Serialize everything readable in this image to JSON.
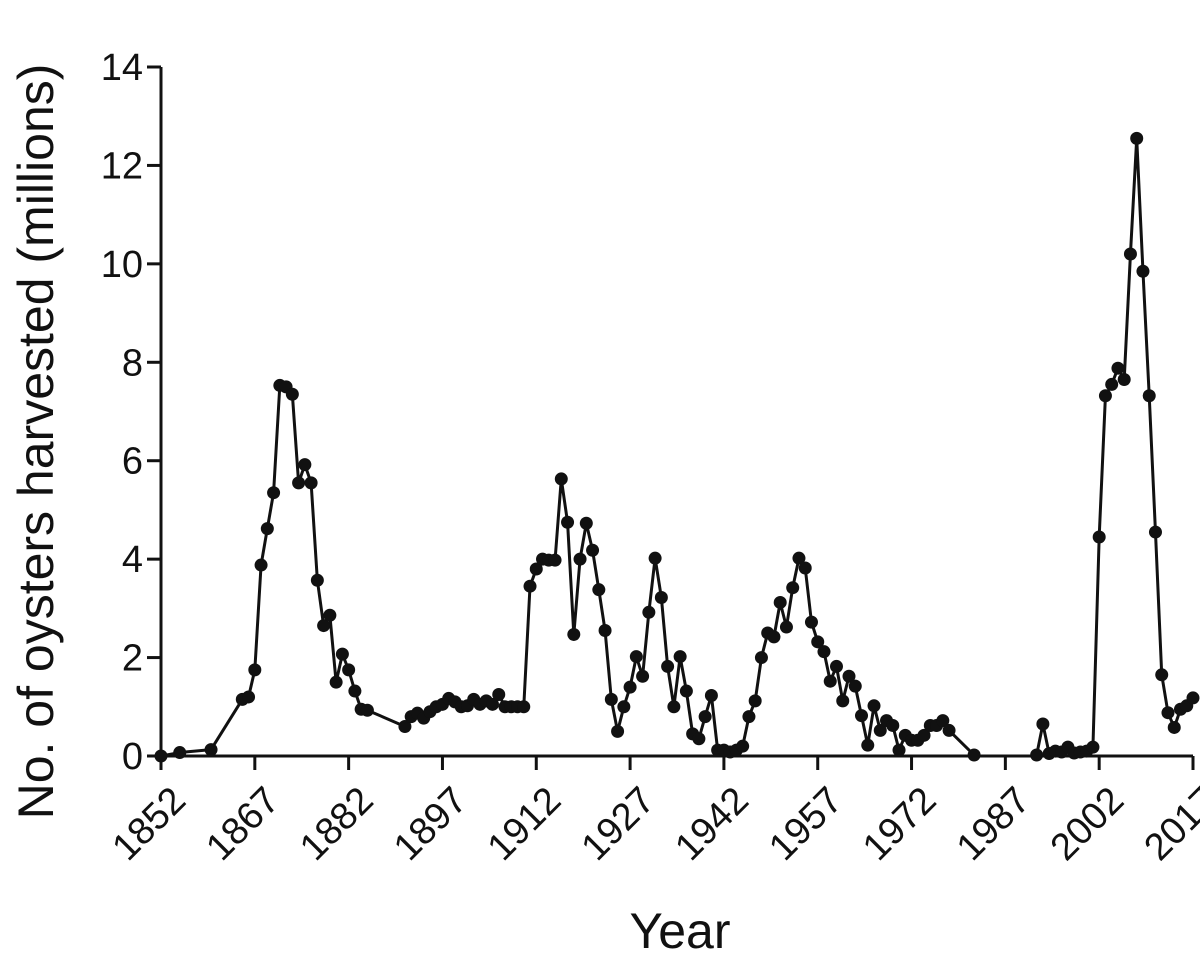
{
  "chart_data": {
    "type": "line",
    "xlabel": "Year",
    "ylabel": "No. of oysters harvested (millions)",
    "xlim": [
      1852,
      2017
    ],
    "ylim": [
      0,
      14
    ],
    "x_ticks": [
      1852,
      1867,
      1882,
      1897,
      1912,
      1927,
      1942,
      1957,
      1972,
      1987,
      2002,
      2017
    ],
    "y_ticks": [
      0,
      2,
      4,
      6,
      8,
      10,
      12,
      14
    ],
    "grid": false,
    "series": [
      {
        "color": "#111111",
        "segments": [
          [
            [
              1852,
              0.0
            ],
            [
              1855,
              0.07
            ],
            [
              1860,
              0.13
            ],
            [
              1865,
              1.15
            ],
            [
              1866,
              1.2
            ],
            [
              1867,
              1.75
            ],
            [
              1868,
              3.88
            ],
            [
              1869,
              4.62
            ],
            [
              1870,
              5.35
            ],
            [
              1871,
              7.53
            ],
            [
              1872,
              7.5
            ],
            [
              1873,
              7.35
            ],
            [
              1874,
              5.55
            ],
            [
              1875,
              5.92
            ],
            [
              1876,
              5.55
            ],
            [
              1877,
              3.57
            ],
            [
              1878,
              2.65
            ],
            [
              1879,
              2.86
            ],
            [
              1880,
              1.5
            ],
            [
              1881,
              2.07
            ],
            [
              1882,
              1.75
            ],
            [
              1883,
              1.32
            ],
            [
              1884,
              0.95
            ],
            [
              1885,
              0.93
            ],
            [
              1891,
              0.6
            ],
            [
              1892,
              0.8
            ],
            [
              1893,
              0.87
            ],
            [
              1894,
              0.77
            ],
            [
              1895,
              0.9
            ],
            [
              1896,
              1.0
            ],
            [
              1897,
              1.05
            ],
            [
              1898,
              1.17
            ],
            [
              1899,
              1.1
            ],
            [
              1900,
              1.0
            ],
            [
              1901,
              1.02
            ],
            [
              1902,
              1.15
            ],
            [
              1903,
              1.05
            ],
            [
              1904,
              1.12
            ],
            [
              1905,
              1.05
            ],
            [
              1906,
              1.25
            ],
            [
              1907,
              1.0
            ],
            [
              1908,
              1.0
            ],
            [
              1909,
              1.0
            ],
            [
              1910,
              1.0
            ],
            [
              1911,
              3.45
            ],
            [
              1912,
              3.8
            ],
            [
              1913,
              4.0
            ],
            [
              1914,
              3.98
            ],
            [
              1915,
              3.98
            ],
            [
              1916,
              5.63
            ],
            [
              1917,
              4.75
            ],
            [
              1918,
              2.47
            ],
            [
              1919,
              4.0
            ],
            [
              1920,
              4.73
            ],
            [
              1921,
              4.18
            ],
            [
              1922,
              3.38
            ],
            [
              1923,
              2.55
            ],
            [
              1924,
              1.15
            ],
            [
              1925,
              0.5
            ],
            [
              1926,
              1.0
            ],
            [
              1927,
              1.4
            ],
            [
              1928,
              2.02
            ],
            [
              1929,
              1.62
            ],
            [
              1930,
              2.92
            ],
            [
              1931,
              4.02
            ],
            [
              1932,
              3.22
            ],
            [
              1933,
              1.82
            ],
            [
              1934,
              1.0
            ],
            [
              1935,
              2.02
            ],
            [
              1936,
              1.32
            ],
            [
              1937,
              0.45
            ],
            [
              1938,
              0.35
            ],
            [
              1939,
              0.8
            ],
            [
              1940,
              1.23
            ],
            [
              1941,
              0.12
            ],
            [
              1942,
              0.12
            ],
            [
              1943,
              0.08
            ],
            [
              1944,
              0.12
            ],
            [
              1945,
              0.2
            ],
            [
              1946,
              0.8
            ],
            [
              1947,
              1.12
            ],
            [
              1948,
              2.0
            ],
            [
              1949,
              2.5
            ],
            [
              1950,
              2.42
            ],
            [
              1951,
              3.12
            ],
            [
              1952,
              2.62
            ],
            [
              1953,
              3.42
            ],
            [
              1954,
              4.02
            ],
            [
              1955,
              3.82
            ],
            [
              1956,
              2.72
            ],
            [
              1957,
              2.32
            ],
            [
              1958,
              2.12
            ],
            [
              1959,
              1.52
            ],
            [
              1960,
              1.82
            ],
            [
              1961,
              1.12
            ],
            [
              1962,
              1.62
            ],
            [
              1963,
              1.42
            ],
            [
              1964,
              0.82
            ],
            [
              1965,
              0.22
            ],
            [
              1966,
              1.02
            ],
            [
              1967,
              0.52
            ],
            [
              1968,
              0.72
            ],
            [
              1969,
              0.62
            ],
            [
              1970,
              0.12
            ],
            [
              1971,
              0.42
            ],
            [
              1972,
              0.32
            ],
            [
              1973,
              0.32
            ],
            [
              1974,
              0.42
            ],
            [
              1975,
              0.62
            ],
            [
              1976,
              0.62
            ],
            [
              1977,
              0.72
            ],
            [
              1978,
              0.52
            ],
            [
              1982,
              0.02
            ]
          ],
          [
            [
              1992,
              0.02
            ],
            [
              1993,
              0.65
            ],
            [
              1994,
              0.05
            ],
            [
              1995,
              0.1
            ],
            [
              1996,
              0.08
            ],
            [
              1997,
              0.18
            ],
            [
              1998,
              0.06
            ],
            [
              1999,
              0.08
            ],
            [
              2000,
              0.1
            ],
            [
              2001,
              0.18
            ],
            [
              2002,
              4.45
            ],
            [
              2003,
              7.32
            ],
            [
              2004,
              7.55
            ],
            [
              2005,
              7.88
            ],
            [
              2006,
              7.65
            ],
            [
              2007,
              10.2
            ],
            [
              2008,
              12.55
            ],
            [
              2009,
              9.85
            ],
            [
              2010,
              7.32
            ],
            [
              2011,
              4.55
            ],
            [
              2012,
              1.65
            ],
            [
              2013,
              0.88
            ],
            [
              2014,
              0.58
            ],
            [
              2015,
              0.95
            ],
            [
              2016,
              1.02
            ],
            [
              2017,
              1.18
            ]
          ]
        ]
      }
    ]
  }
}
